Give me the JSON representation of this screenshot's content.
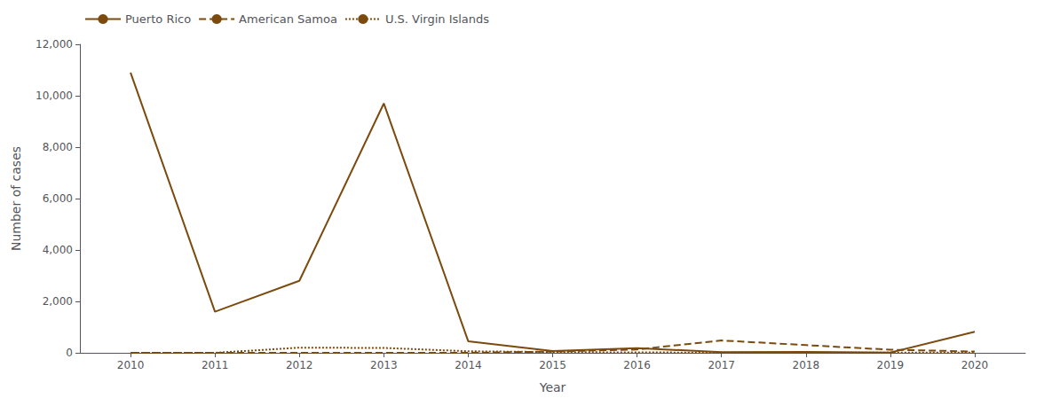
{
  "chart_data": {
    "type": "line",
    "xlabel": "Year",
    "ylabel": "Number of cases",
    "x": [
      2010,
      2011,
      2012,
      2013,
      2014,
      2015,
      2016,
      2017,
      2018,
      2019,
      2020
    ],
    "series": [
      {
        "name": "Puerto Rico",
        "color": "#7B4A0E",
        "line_style": "solid",
        "values": [
          10900,
          1600,
          2800,
          9700,
          450,
          70,
          180,
          30,
          35,
          10,
          820
        ]
      },
      {
        "name": "American Samoa",
        "color": "#7B4A0E",
        "line_style": "dashed",
        "values": [
          0,
          0,
          0,
          0,
          0,
          50,
          130,
          480,
          300,
          120,
          50
        ]
      },
      {
        "name": "U.S. Virgin Islands",
        "color": "#7B4A0E",
        "line_style": "dotted",
        "values": [
          0,
          0,
          200,
          190,
          60,
          30,
          15,
          10,
          10,
          5,
          5
        ]
      }
    ],
    "xlim": [
      2009.4,
      2020.6
    ],
    "xticks": [
      2010,
      2011,
      2012,
      2013,
      2014,
      2015,
      2016,
      2017,
      2018,
      2019,
      2020
    ],
    "ylim": [
      0,
      12000
    ],
    "yticks": [
      0,
      {
        "value": 2000,
        "label": "2,000"
      },
      {
        "value": 4000,
        "label": "4,000"
      },
      {
        "value": 6000,
        "label": "6,000"
      },
      {
        "value": 8000,
        "label": "8,000"
      },
      {
        "value": 10000,
        "label": "10,000"
      },
      {
        "value": 12000,
        "label": "12,000"
      }
    ],
    "grid": false,
    "legend": "upper left"
  }
}
